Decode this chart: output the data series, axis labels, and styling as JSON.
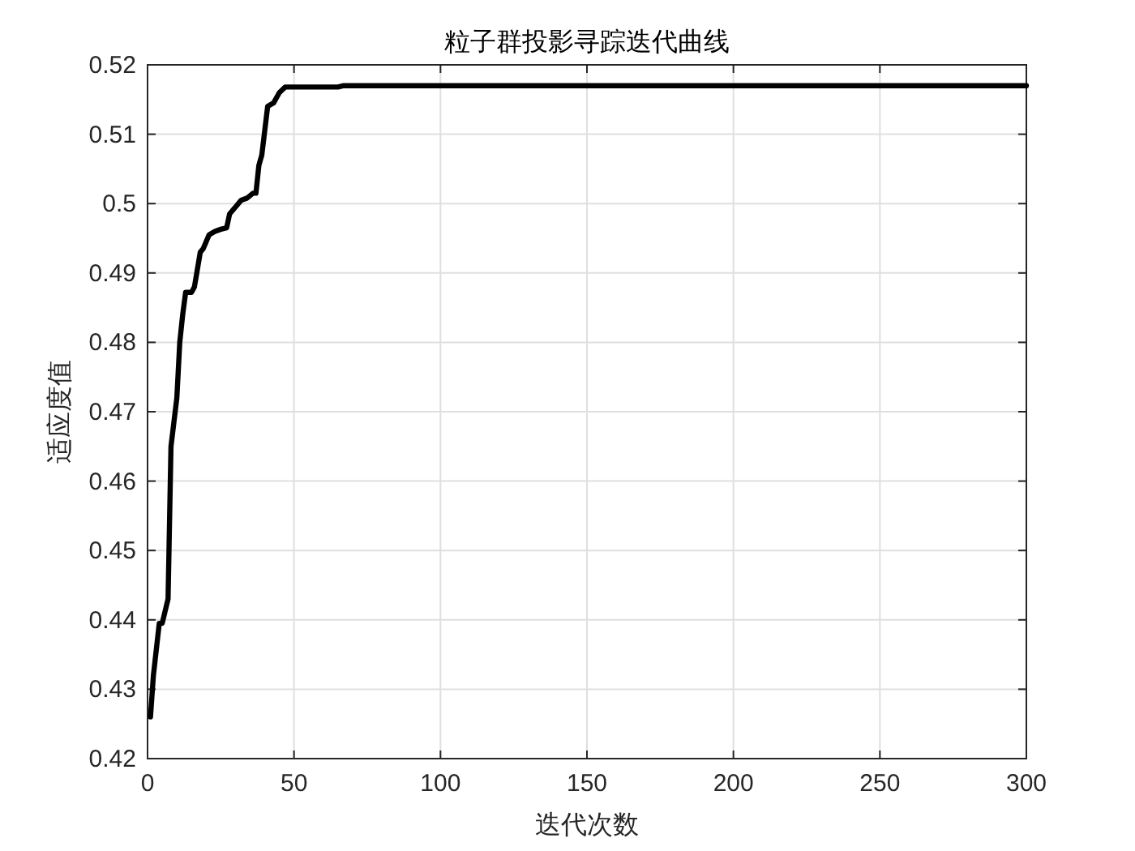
{
  "chart_data": {
    "type": "line",
    "title": "粒子群投影寻踪迭代曲线",
    "xlabel": "迭代次数",
    "ylabel": "适应度值",
    "xlim": [
      0,
      300
    ],
    "ylim": [
      0.42,
      0.52
    ],
    "xticks": [
      0,
      50,
      100,
      150,
      200,
      250,
      300
    ],
    "yticks": [
      0.42,
      0.43,
      0.44,
      0.45,
      0.46,
      0.47,
      0.48,
      0.49,
      {
        "value": 0.5,
        "label": "0.5"
      },
      0.51,
      0.52
    ],
    "grid": true,
    "series": [
      {
        "color": "#000000",
        "x": [
          1,
          2,
          4,
          5,
          7,
          8,
          10,
          11,
          12,
          13,
          15,
          16,
          18,
          19,
          21,
          23,
          25,
          27,
          28,
          30,
          32,
          34,
          36,
          37,
          38,
          39,
          40,
          41,
          43,
          45,
          47,
          55,
          65,
          67,
          300
        ],
        "values": [
          0.426,
          0.432,
          0.4395,
          0.4395,
          0.443,
          0.465,
          0.472,
          0.48,
          0.484,
          0.4872,
          0.4872,
          0.488,
          0.493,
          0.4935,
          0.4955,
          0.496,
          0.4963,
          0.4965,
          0.4985,
          0.4995,
          0.5005,
          0.5008,
          0.5015,
          0.5015,
          0.5055,
          0.507,
          0.5105,
          0.514,
          0.5145,
          0.516,
          0.5168,
          0.5168,
          0.5168,
          0.517,
          0.517
        ]
      }
    ]
  }
}
